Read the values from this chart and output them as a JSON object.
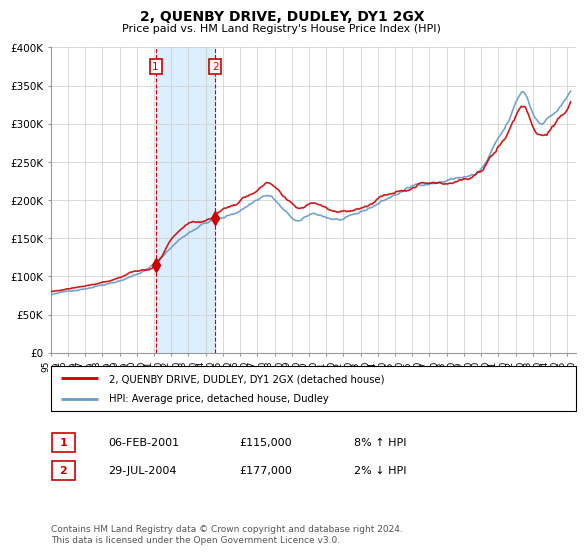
{
  "title": "2, QUENBY DRIVE, DUDLEY, DY1 2GX",
  "subtitle": "Price paid vs. HM Land Registry's House Price Index (HPI)",
  "sale1_date": 2001.09,
  "sale1_price": 115000,
  "sale1_label": "1",
  "sale2_date": 2004.56,
  "sale2_price": 177000,
  "sale2_label": "2",
  "ylim": [
    0,
    400000
  ],
  "yticks": [
    0,
    50000,
    100000,
    150000,
    200000,
    250000,
    300000,
    350000,
    400000
  ],
  "ytick_labels": [
    "£0",
    "£50K",
    "£100K",
    "£150K",
    "£200K",
    "£250K",
    "£300K",
    "£350K",
    "£400K"
  ],
  "line_color_red": "#cc0000",
  "line_color_blue": "#6699cc",
  "shade_color": "#ddeeff",
  "legend_label_red": "2, QUENBY DRIVE, DUDLEY, DY1 2GX (detached house)",
  "legend_label_blue": "HPI: Average price, detached house, Dudley",
  "footer": "Contains HM Land Registry data © Crown copyright and database right 2024.\nThis data is licensed under the Open Government Licence v3.0.",
  "table_rows": [
    [
      "1",
      "06-FEB-2001",
      "£115,000",
      "8% ↑ HPI"
    ],
    [
      "2",
      "29-JUL-2004",
      "£177,000",
      "2% ↓ HPI"
    ]
  ],
  "xlim": [
    1995.0,
    2025.5
  ],
  "xtick_years": [
    1995,
    1996,
    1997,
    1998,
    1999,
    2000,
    2001,
    2002,
    2003,
    2004,
    2005,
    2006,
    2007,
    2008,
    2009,
    2010,
    2011,
    2012,
    2013,
    2014,
    2015,
    2016,
    2017,
    2018,
    2019,
    2020,
    2021,
    2022,
    2023,
    2024,
    2025
  ]
}
